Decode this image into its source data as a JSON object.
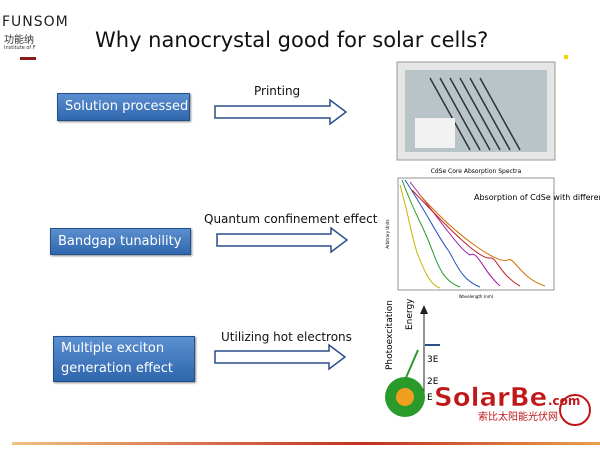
{
  "header": {
    "logo": "FUNSOM",
    "logo_cn": "功能纳",
    "logo_sub": "Institute of F",
    "title": "Why nanocrystal good for solar cells?"
  },
  "rows": [
    {
      "label": "Solution processed",
      "arrow_label": "Printing"
    },
    {
      "label": "Bandgap tunability",
      "arrow_label": "Quantum confinement effect"
    },
    {
      "label": "Multiple exciton generation effect",
      "arrow_label": "Utilizing hot electrons"
    }
  ],
  "spectra": {
    "title": "CdSe Core Absorption Spectra",
    "note": "Absorption of CdSe with different size",
    "ylabel": "Arbitrary Units",
    "xlabel": "Wavelength (nm)"
  },
  "diagram": {
    "axis": "Energy",
    "side": "Photoexcitation",
    "level3": "3E",
    "level2": "2E",
    "level1": "E"
  },
  "watermark": {
    "brand": "SolarBe",
    "domain": ".com",
    "cn": "索比太阳能光伏网"
  }
}
